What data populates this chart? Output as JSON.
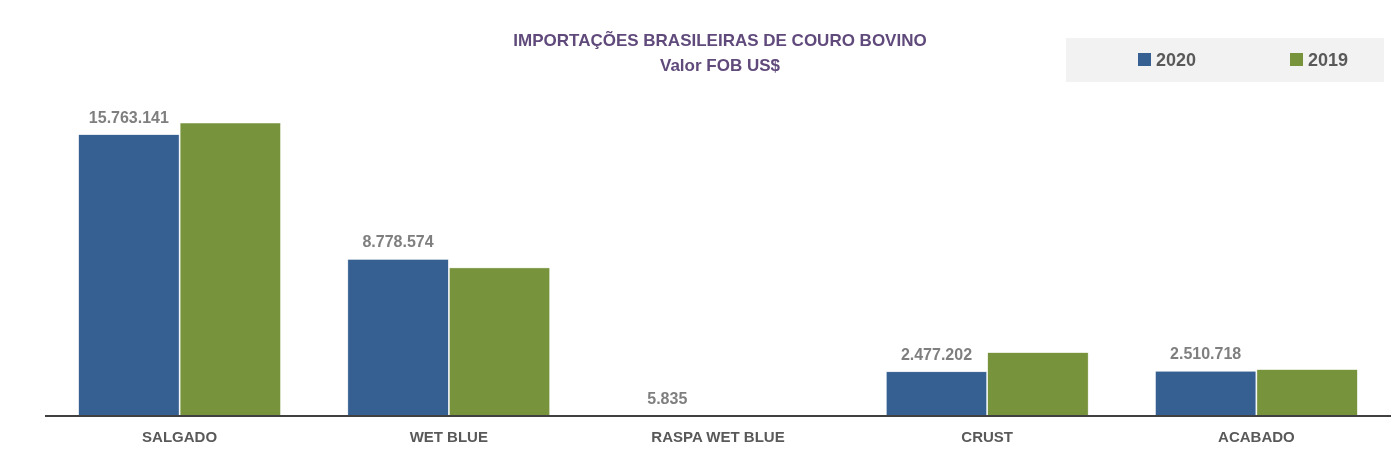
{
  "chart_data": {
    "type": "bar",
    "title": "IMPORTAÇÕES  BRASILEIRAS DE COURO BOVINO",
    "subtitle": "Valor  FOB US$",
    "categories": [
      "SALGADO",
      "WET BLUE",
      "RASPA WET BLUE",
      "CRUST",
      "ACABADO"
    ],
    "series": [
      {
        "name": "2020",
        "color": "#366092",
        "values": [
          15763141,
          8778574,
          5835,
          2477202,
          2510718
        ],
        "value_labels": [
          "15.763.141",
          "8.778.574",
          "5.835",
          "2.477.202",
          "2.510.718"
        ]
      },
      {
        "name": "2019",
        "color": "#77933c",
        "values": [
          16420000,
          8300000,
          0,
          3550000,
          2600000
        ]
      }
    ],
    "legend": "top right"
  }
}
